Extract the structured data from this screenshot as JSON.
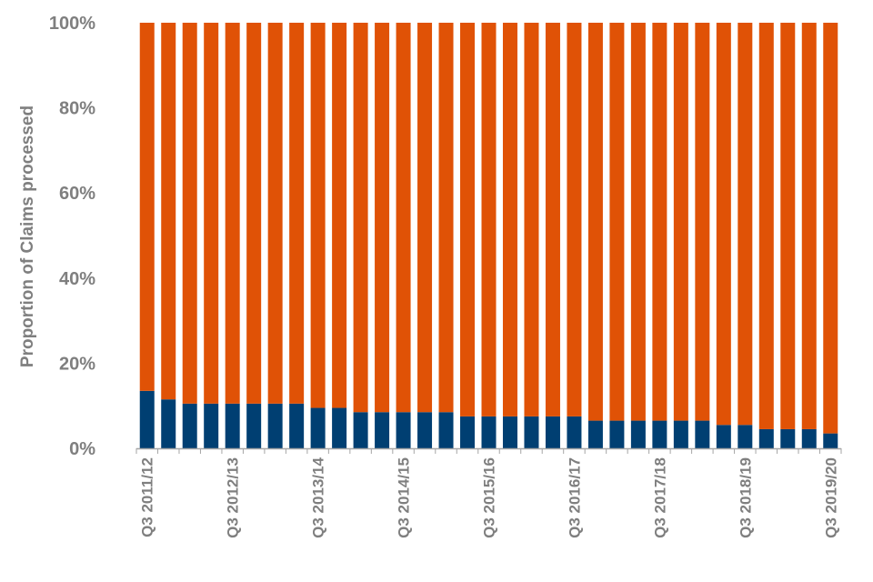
{
  "chart_data": {
    "type": "bar",
    "stacked": true,
    "title": "",
    "xlabel": "",
    "ylabel": "Proportion of Claims processed",
    "ylim": [
      0,
      100
    ],
    "y_ticks": [
      "0%",
      "20%",
      "40%",
      "60%",
      "80%",
      "100%"
    ],
    "categories": [
      "Q3 2011/12",
      "Q4 2011/12",
      "Q1 2012/13",
      "Q2 2012/13",
      "Q3 2012/13",
      "Q4 2012/13",
      "Q1 2013/14",
      "Q2 2013/14",
      "Q3 2013/14",
      "Q4 2013/14",
      "Q1 2014/15",
      "Q2 2014/15",
      "Q3 2014/15",
      "Q4 2014/15",
      "Q1 2015/16",
      "Q2 2015/16",
      "Q3 2015/16",
      "Q4 2015/16",
      "Q1 2016/17",
      "Q2 2016/17",
      "Q3 2016/17",
      "Q4 2016/17",
      "Q1 2017/18",
      "Q2 2017/18",
      "Q3 2017/18",
      "Q4 2017/18",
      "Q1 2018/19",
      "Q2 2018/19",
      "Q3 2018/19",
      "Q4 2018/19",
      "Q1 2019/20",
      "Q2 2019/20",
      "Q3 2019/20"
    ],
    "shown_x_labels": [
      "Q3 2011/12",
      "Q3 2012/13",
      "Q3 2013/14",
      "Q3 2014/15",
      "Q3 2015/16",
      "Q3 2016/17",
      "Q3 2017/18",
      "Q3 2018/19",
      "Q3 2019/20"
    ],
    "series": [
      {
        "color": "#003f72",
        "values": [
          13.5,
          11.5,
          10.5,
          10.5,
          10.5,
          10.5,
          10.5,
          10.5,
          9.5,
          9.5,
          8.5,
          8.5,
          8.5,
          8.5,
          8.5,
          7.5,
          7.5,
          7.5,
          7.5,
          7.5,
          7.5,
          6.5,
          6.5,
          6.5,
          6.5,
          6.5,
          6.5,
          5.5,
          5.5,
          4.5,
          4.5,
          4.5,
          3.5
        ]
      },
      {
        "color": "#e05206",
        "values": [
          86.5,
          88.5,
          89.5,
          89.5,
          89.5,
          89.5,
          89.5,
          89.5,
          90.5,
          90.5,
          91.5,
          91.5,
          91.5,
          91.5,
          91.5,
          92.5,
          92.5,
          92.5,
          92.5,
          92.5,
          92.5,
          93.5,
          93.5,
          93.5,
          93.5,
          93.5,
          93.5,
          94.5,
          94.5,
          95.5,
          95.5,
          95.5,
          96.5
        ]
      }
    ],
    "grid": false,
    "legend": "none"
  }
}
